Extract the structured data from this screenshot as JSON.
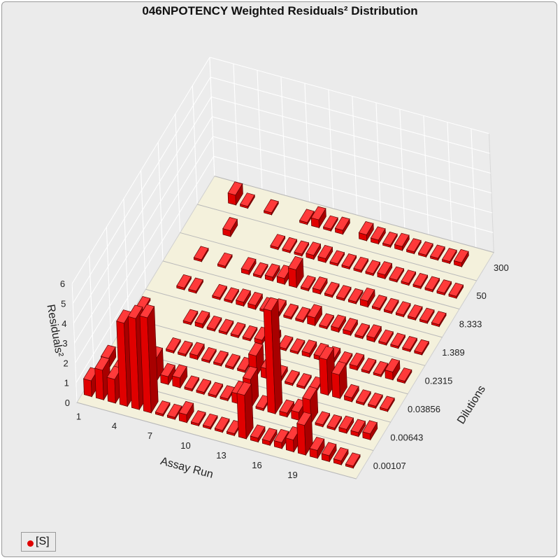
{
  "chart_data": {
    "type": "bar3d",
    "title": "046NPOTENCY Weighted Residuals² Distribution",
    "xlabel": "Assay Run",
    "ylabel": "Dilutions",
    "zlabel": "Residuals²",
    "x_ticks": [
      "1",
      "4",
      "7",
      "10",
      "13",
      "16",
      "19"
    ],
    "y_ticks": [
      "0.00107",
      "0.00643",
      "0.03856",
      "0.2315",
      "1.389",
      "8.333",
      "50",
      "300"
    ],
    "z_ticks": [
      "0",
      "1",
      "2",
      "3",
      "4",
      "5",
      "6"
    ],
    "zlim": [
      0,
      6
    ],
    "grid": true,
    "legend_position": "bottom-left",
    "runs": [
      "1",
      "2",
      "3",
      "4",
      "5",
      "6",
      "7",
      "8",
      "9",
      "10",
      "11",
      "12",
      "13",
      "14",
      "15",
      "16",
      "17",
      "18",
      "19",
      "20",
      "21",
      "22",
      "23"
    ],
    "series": [
      {
        "name": "[S]",
        "color": "#e00000",
        "values": [
          [
            0.8,
            0.5,
            0.0,
            0.1,
            0.0,
            0.0,
            0.0,
            0.0
          ],
          [
            1.5,
            0.1,
            0.1,
            0.0,
            0.0,
            0.0,
            0.0,
            0.0
          ],
          [
            1.2,
            0.3,
            0.0,
            0.0,
            0.1,
            0.1,
            0.0,
            0.5
          ],
          [
            4.2,
            1.5,
            0.0,
            0.0,
            0.1,
            0.0,
            0.3,
            0.1
          ],
          [
            4.6,
            1.1,
            0.1,
            0.1,
            0.0,
            0.1,
            0.0,
            0.0
          ],
          [
            4.8,
            0.4,
            0.1,
            0.2,
            0.1,
            0.0,
            0.0,
            0.1
          ],
          [
            0.1,
            0.5,
            0.2,
            0.1,
            0.1,
            0.2,
            0.0,
            0.0
          ],
          [
            0.1,
            0.1,
            0.1,
            0.1,
            0.2,
            0.1,
            0.1,
            0.0
          ],
          [
            0.4,
            0.1,
            0.1,
            0.1,
            0.2,
            0.2,
            0.1,
            0.1
          ],
          [
            0.1,
            0.1,
            0.1,
            0.1,
            0.1,
            0.3,
            0.1,
            0.4
          ],
          [
            0.1,
            0.1,
            0.1,
            0.2,
            0.2,
            0.9,
            0.2,
            0.1
          ],
          [
            0.1,
            0.5,
            1.0,
            0.3,
            0.1,
            0.1,
            0.2,
            0.2
          ],
          [
            0.1,
            1.4,
            0.5,
            0.1,
            0.1,
            0.2,
            0.1,
            0.0
          ],
          [
            2.2,
            0.1,
            0.2,
            0.1,
            0.4,
            0.1,
            0.1,
            0.3
          ],
          [
            0.2,
            5.2,
            0.1,
            0.2,
            0.1,
            0.1,
            0.1,
            0.2
          ],
          [
            0.2,
            0.2,
            0.1,
            0.2,
            0.2,
            0.1,
            0.1,
            0.1
          ],
          [
            0.3,
            0.4,
            0.1,
            0.2,
            0.2,
            0.3,
            0.2,
            0.2
          ],
          [
            0.6,
            1.2,
            1.8,
            0.1,
            0.1,
            0.1,
            0.1,
            0.1
          ],
          [
            1.5,
            0.1,
            1.2,
            0.2,
            0.2,
            0.1,
            0.1,
            0.1
          ],
          [
            0.4,
            0.1,
            0.2,
            0.1,
            0.1,
            0.1,
            0.1,
            0.1
          ],
          [
            0.3,
            0.2,
            0.1,
            0.1,
            0.1,
            0.1,
            0.1,
            0.1
          ],
          [
            0.2,
            0.2,
            0.1,
            0.4,
            0.1,
            0.1,
            0.1,
            0.2
          ],
          [
            0.1,
            0.3,
            0.1,
            0.1,
            0.1,
            0.1,
            0.1,
            0.0
          ]
        ]
      }
    ]
  }
}
